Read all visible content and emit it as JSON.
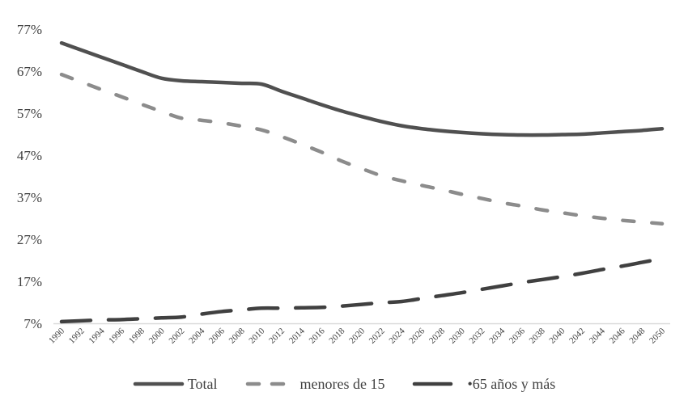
{
  "chart_data": {
    "type": "line",
    "title": "",
    "xlabel": "",
    "ylabel": "",
    "ylim": [
      7,
      77
    ],
    "yticks": [
      "77%",
      "67%",
      "57%",
      "47%",
      "37%",
      "27%",
      "17%",
      "7%"
    ],
    "ytick_values": [
      77,
      67,
      57,
      47,
      37,
      27,
      17,
      7
    ],
    "grid": false,
    "legend_position": "bottom",
    "x": [
      1990,
      1992,
      1994,
      1996,
      1998,
      2000,
      2002,
      2004,
      2006,
      2008,
      2010,
      2012,
      2014,
      2016,
      2018,
      2020,
      2022,
      2024,
      2026,
      2028,
      2030,
      2032,
      2034,
      2036,
      2038,
      2040,
      2042,
      2044,
      2046,
      2048,
      2050
    ],
    "series": [
      {
        "name": "Total",
        "style": "solid",
        "color": "#505050",
        "values": [
          73.7,
          72.0,
          70.3,
          68.6,
          66.9,
          65.3,
          64.7,
          64.5,
          64.3,
          64.1,
          63.9,
          62.2,
          60.6,
          59.0,
          57.5,
          56.2,
          55.0,
          54.0,
          53.3,
          52.8,
          52.4,
          52.1,
          51.9,
          51.8,
          51.8,
          51.9,
          52.0,
          52.3,
          52.6,
          52.9,
          53.3
        ]
      },
      {
        "name": "menores de 15",
        "style": "dashed",
        "color": "#8c8c8c",
        "values": [
          66.2,
          64.4,
          62.6,
          60.9,
          59.1,
          57.4,
          55.8,
          55.3,
          54.7,
          53.9,
          53.0,
          51.4,
          49.6,
          47.7,
          45.6,
          43.8,
          42.1,
          40.9,
          39.8,
          38.8,
          37.7,
          36.7,
          35.7,
          34.9,
          34.0,
          33.3,
          32.6,
          32.0,
          31.5,
          31.1,
          30.7
        ]
      },
      {
        "name": "65 años y más",
        "style": "dashed",
        "color": "#404040",
        "values": [
          7.4,
          7.6,
          7.8,
          7.9,
          8.1,
          8.3,
          8.5,
          9.2,
          9.8,
          10.2,
          10.6,
          10.6,
          10.7,
          10.8,
          11.1,
          11.5,
          11.9,
          12.2,
          12.9,
          13.6,
          14.3,
          15.1,
          15.9,
          16.7,
          17.4,
          18.1,
          18.9,
          19.8,
          20.6,
          21.5,
          22.4
        ]
      }
    ]
  },
  "legend": {
    "items": [
      {
        "label": "Total"
      },
      {
        "label": "menores de 15"
      },
      {
        "label": "•65 años y más"
      }
    ]
  }
}
